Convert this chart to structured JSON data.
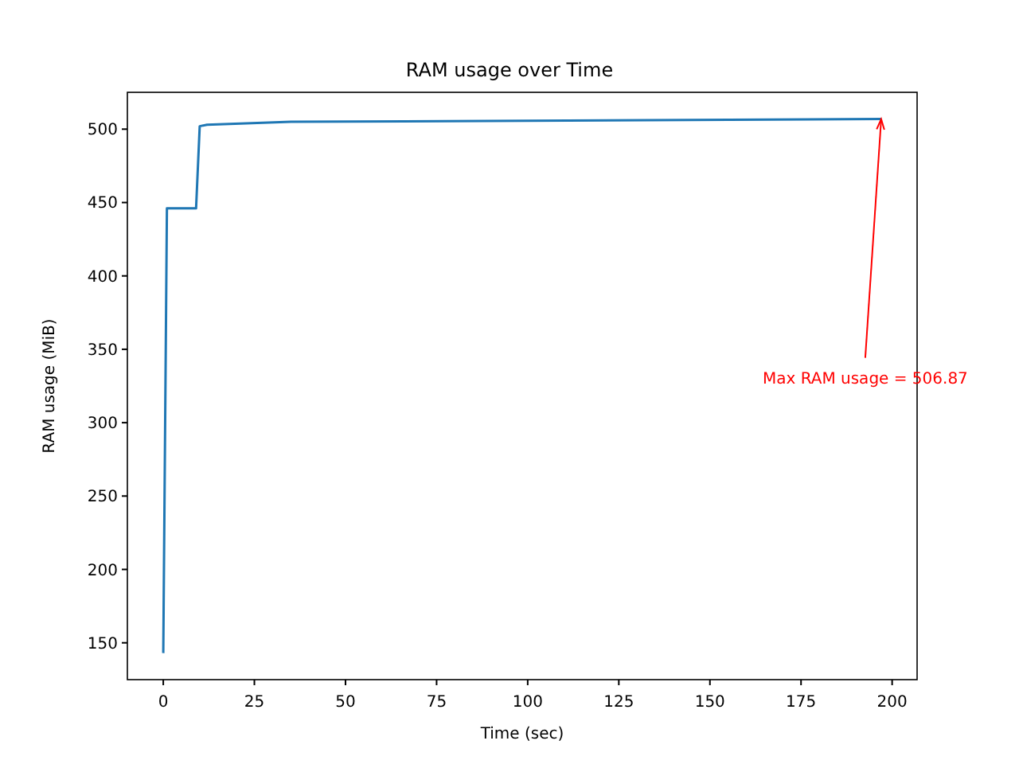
{
  "chart_data": {
    "type": "line",
    "title": "RAM usage over Time",
    "xlabel": "Time (sec)",
    "ylabel": "RAM usage (MiB)",
    "x": [
      0,
      1,
      9,
      10,
      12,
      35,
      197
    ],
    "series": [
      {
        "color": "#1f77b4",
        "values": [
          143,
          446,
          446,
          502,
          503,
          505,
          506.87
        ]
      }
    ],
    "xlim": [
      -9.85,
      206.85
    ],
    "xticks": [
      0,
      25,
      50,
      75,
      100,
      125,
      150,
      175,
      200
    ],
    "ylim": [
      124.9,
      525.1
    ],
    "yticks": [
      150,
      200,
      250,
      300,
      350,
      400,
      450,
      500
    ],
    "annotations": [
      {
        "text": "Max RAM usage = 506.87",
        "x": 197,
        "y": 506.87
      }
    ],
    "marker": "none",
    "line_style": "solid"
  }
}
